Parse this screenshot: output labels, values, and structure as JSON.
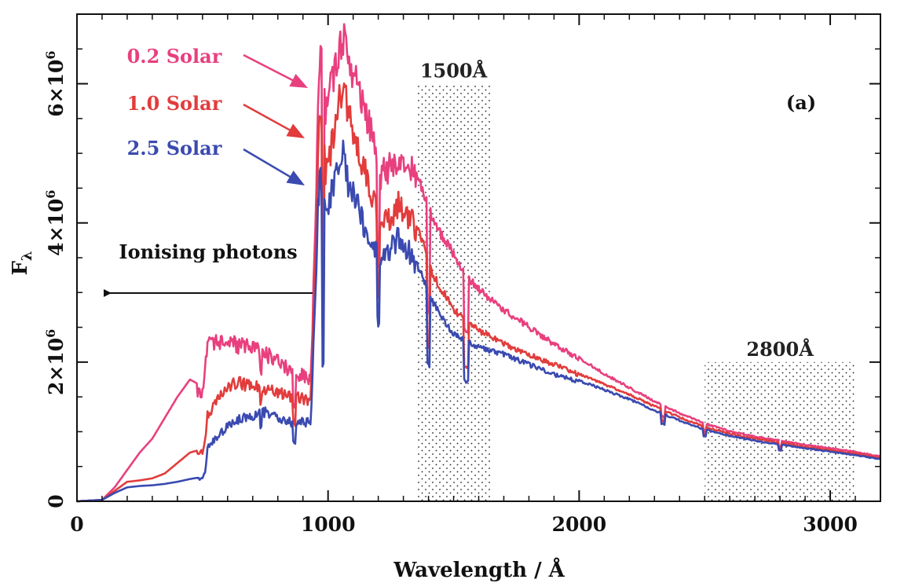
{
  "chart_data": {
    "type": "line",
    "title": "",
    "panel_label": "(a)",
    "xlabel": "Wavelength / Å",
    "ylabel_main": "F",
    "ylabel_sub": "λ",
    "xlim": [
      0,
      3200
    ],
    "ylim": [
      0,
      7000000
    ],
    "x_ticks": [
      {
        "value": 0,
        "label": "0"
      },
      {
        "value": 1000,
        "label": "1000"
      },
      {
        "value": 2000,
        "label": "2000"
      },
      {
        "value": 3000,
        "label": "3000"
      }
    ],
    "y_ticks": [
      {
        "value": 0,
        "mant": "0",
        "exp": ""
      },
      {
        "value": 2000000,
        "mant": "2×10",
        "exp": "6"
      },
      {
        "value": 4000000,
        "mant": "4×10",
        "exp": "6"
      },
      {
        "value": 6000000,
        "mant": "6×10",
        "exp": "6"
      }
    ],
    "grid": false,
    "bands": [
      {
        "x0": 1350,
        "x1": 1650,
        "ymax": 6000000,
        "label": "1500Å"
      },
      {
        "x0": 2500,
        "x1": 3100,
        "ymax": 2000000,
        "label": "2800Å"
      }
    ],
    "ionising_label": "Ionising photons",
    "series": [
      {
        "name": "0.2 Solar",
        "color": "#e8407e",
        "x": [
          0,
          100,
          150,
          200,
          250,
          300,
          350,
          400,
          450,
          500,
          510,
          520,
          550,
          600,
          650,
          700,
          750,
          800,
          850,
          900,
          930,
          950,
          960,
          970,
          990,
          1010,
          1030,
          1060,
          1080,
          1100,
          1130,
          1160,
          1190,
          1200,
          1210,
          1230,
          1260,
          1280,
          1300,
          1330,
          1360,
          1380,
          1400,
          1420,
          1450,
          1480,
          1500,
          1550,
          1600,
          1650,
          1700,
          1800,
          1900,
          2000,
          2100,
          2200,
          2300,
          2400,
          2500,
          2600,
          2700,
          2800,
          2900,
          3000,
          3100,
          3200
        ],
        "y": [
          0,
          20000,
          200000,
          450000,
          700000,
          900000,
          1200000,
          1500000,
          1750000,
          1650000,
          2000000,
          2500000,
          2420000,
          2400000,
          2350000,
          2320000,
          2250000,
          2150000,
          2000000,
          1900000,
          1850000,
          4000000,
          6000000,
          6900000,
          5800000,
          6200000,
          6600000,
          7000000,
          6600000,
          6400000,
          6100000,
          5700000,
          5300000,
          5100000,
          4900000,
          5000000,
          5050000,
          5200000,
          5150000,
          5000000,
          4700000,
          4500000,
          4300000,
          4100000,
          3900000,
          3750000,
          3600000,
          3300000,
          3100000,
          2950000,
          2800000,
          2550000,
          2300000,
          2080000,
          1850000,
          1650000,
          1450000,
          1280000,
          1130000,
          1020000,
          940000,
          880000,
          820000,
          770000,
          720000,
          650000
        ]
      },
      {
        "name": "1.0 Solar",
        "color": "#e23c3c",
        "x": [
          0,
          100,
          150,
          200,
          250,
          300,
          350,
          400,
          450,
          500,
          510,
          520,
          550,
          600,
          650,
          700,
          750,
          800,
          850,
          900,
          930,
          950,
          960,
          970,
          990,
          1010,
          1030,
          1060,
          1080,
          1100,
          1130,
          1160,
          1190,
          1200,
          1210,
          1230,
          1260,
          1280,
          1300,
          1330,
          1360,
          1380,
          1400,
          1420,
          1450,
          1480,
          1500,
          1550,
          1600,
          1650,
          1700,
          1800,
          1900,
          2000,
          2100,
          2200,
          2300,
          2400,
          2500,
          2600,
          2700,
          2800,
          2900,
          3000,
          3100,
          3200
        ],
        "y": [
          0,
          20000,
          150000,
          280000,
          300000,
          330000,
          400000,
          550000,
          700000,
          750000,
          900000,
          1300000,
          1500000,
          1750000,
          1800000,
          1750000,
          1700000,
          1650000,
          1600000,
          1550000,
          1500000,
          3500000,
          5200000,
          6000000,
          5000000,
          5300000,
          5700000,
          6300000,
          5800000,
          5500000,
          5200000,
          4800000,
          4500000,
          4300000,
          4100000,
          4200000,
          4350000,
          4450000,
          4400000,
          4250000,
          4000000,
          3750000,
          3500000,
          3300000,
          3100000,
          2950000,
          2800000,
          2650000,
          2500000,
          2400000,
          2300000,
          2150000,
          2000000,
          1850000,
          1700000,
          1550000,
          1380000,
          1220000,
          1080000,
          980000,
          910000,
          850000,
          790000,
          740000,
          690000,
          630000
        ]
      },
      {
        "name": "2.5 Solar",
        "color": "#3a4ab0",
        "x": [
          0,
          100,
          150,
          200,
          250,
          300,
          350,
          400,
          450,
          500,
          510,
          520,
          550,
          600,
          650,
          700,
          750,
          800,
          850,
          900,
          930,
          950,
          960,
          970,
          990,
          1010,
          1030,
          1060,
          1080,
          1100,
          1130,
          1160,
          1190,
          1200,
          1210,
          1230,
          1260,
          1280,
          1300,
          1330,
          1360,
          1380,
          1400,
          1420,
          1450,
          1480,
          1500,
          1550,
          1600,
          1650,
          1700,
          1800,
          1900,
          2000,
          2100,
          2200,
          2300,
          2400,
          2500,
          2600,
          2700,
          2800,
          2900,
          3000,
          3100,
          3200
        ],
        "y": [
          0,
          20000,
          120000,
          200000,
          220000,
          230000,
          250000,
          280000,
          320000,
          350000,
          450000,
          800000,
          950000,
          1150000,
          1250000,
          1300000,
          1350000,
          1250000,
          1200000,
          1200000,
          1200000,
          3000000,
          4500000,
          4900000,
          4300000,
          4600000,
          4900000,
          5400000,
          4800000,
          4600000,
          4300000,
          4000000,
          3800000,
          3700000,
          3600000,
          3700000,
          3850000,
          3950000,
          3900000,
          3700000,
          3400000,
          3250000,
          3050000,
          2900000,
          2700000,
          2550000,
          2450000,
          2350000,
          2250000,
          2200000,
          2150000,
          2000000,
          1850000,
          1750000,
          1620000,
          1480000,
          1320000,
          1170000,
          1040000,
          950000,
          880000,
          820000,
          770000,
          720000,
          670000,
          610000
        ]
      }
    ],
    "absorption_features": [
      {
        "x": 1400,
        "depth": 0.35
      },
      {
        "x": 1550,
        "depth": 0.25
      },
      {
        "x": 2335,
        "depth": 0.12
      },
      {
        "x": 2500,
        "depth": 0.1
      },
      {
        "x": 2800,
        "depth": 0.1
      }
    ]
  }
}
